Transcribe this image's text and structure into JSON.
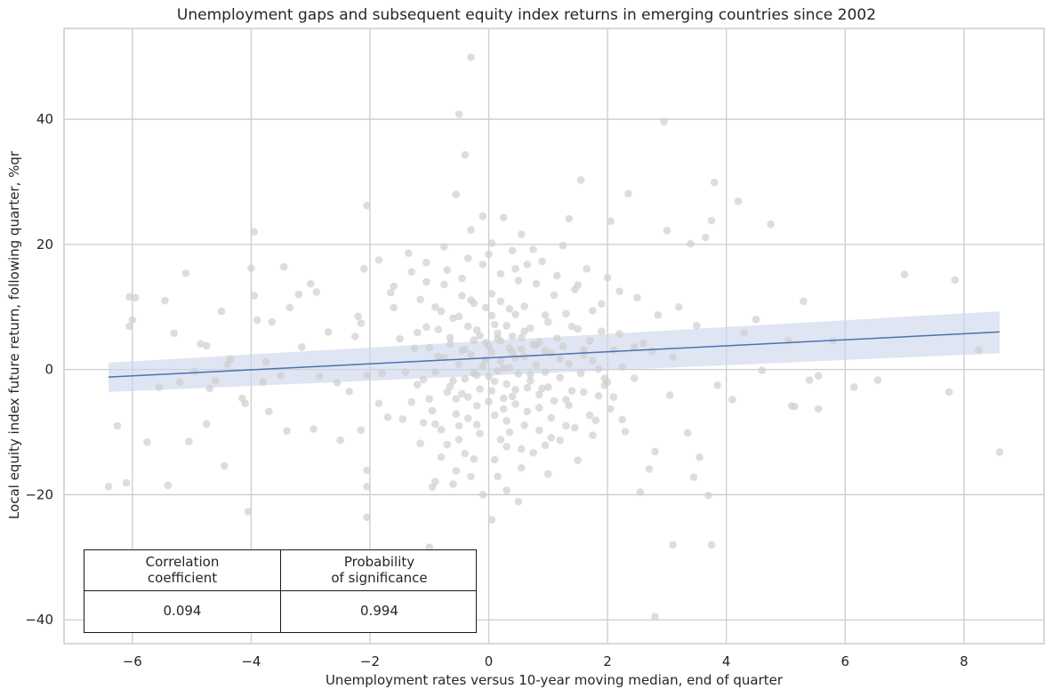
{
  "chart_data": {
    "type": "scatter",
    "title": "Unemployment gaps and subsequent equity index returns in emerging countries since 2002",
    "xlabel": "Unemployment rates versus 10-year moving median, end of quarter",
    "ylabel": "Local equity index future return, following quarter, %qr",
    "xlim": [
      -7.15,
      9.35
    ],
    "ylim": [
      -43.8,
      54.5
    ],
    "xticks": [
      -6,
      -4,
      -2,
      0,
      2,
      4,
      6,
      8
    ],
    "yticks": [
      -40,
      -20,
      0,
      20,
      40
    ],
    "xtick_labels": [
      "−6",
      "−4",
      "−2",
      "0",
      "2",
      "4",
      "6",
      "8"
    ],
    "ytick_labels": [
      "−40",
      "−20",
      "0",
      "20",
      "40"
    ],
    "grid": true,
    "colors": {
      "points": "#cfcfcf",
      "line": "#4c72b0",
      "band": "#c9d4ea",
      "grid": "#cccccc"
    },
    "regression": {
      "x": [
        -6.4,
        8.6
      ],
      "y": [
        -1.2,
        6.0
      ],
      "ci_lower": [
        -3.6,
        2.6
      ],
      "ci_upper": [
        1.1,
        9.3
      ]
    },
    "points": [
      [
        -6.4,
        -18.7
      ],
      [
        -6.25,
        -9.0
      ],
      [
        -6.1,
        -18.1
      ],
      [
        -6.05,
        11.6
      ],
      [
        -6.0,
        7.9
      ],
      [
        -5.95,
        11.5
      ],
      [
        -6.05,
        6.9
      ],
      [
        -5.75,
        -11.6
      ],
      [
        -5.45,
        11.0
      ],
      [
        -5.4,
        -18.5
      ],
      [
        -5.55,
        -2.8
      ],
      [
        -5.3,
        5.8
      ],
      [
        -5.2,
        -2.0
      ],
      [
        -5.1,
        15.4
      ],
      [
        -5.05,
        -11.5
      ],
      [
        -4.95,
        -0.3
      ],
      [
        -4.85,
        4.1
      ],
      [
        -4.75,
        -8.7
      ],
      [
        -4.75,
        3.8
      ],
      [
        -4.7,
        -3.0
      ],
      [
        -4.6,
        -1.8
      ],
      [
        -4.5,
        9.3
      ],
      [
        -4.45,
        -15.4
      ],
      [
        -4.4,
        0.8
      ],
      [
        -4.35,
        1.7
      ],
      [
        -4.15,
        -4.6
      ],
      [
        -4.1,
        -5.4
      ],
      [
        -4.05,
        -22.7
      ],
      [
        -4.0,
        16.2
      ],
      [
        -3.95,
        22.0
      ],
      [
        -3.95,
        11.8
      ],
      [
        -3.9,
        7.9
      ],
      [
        -3.8,
        -2.0
      ],
      [
        -3.75,
        1.2
      ],
      [
        -3.7,
        -6.7
      ],
      [
        -3.65,
        7.6
      ],
      [
        -3.5,
        -1.0
      ],
      [
        -3.45,
        16.4
      ],
      [
        -3.4,
        -9.8
      ],
      [
        -3.35,
        9.9
      ],
      [
        -3.2,
        12.0
      ],
      [
        -3.15,
        3.6
      ],
      [
        -3.0,
        13.7
      ],
      [
        -2.95,
        -9.5
      ],
      [
        -2.9,
        12.4
      ],
      [
        -2.85,
        -1.1
      ],
      [
        -2.7,
        6.0
      ],
      [
        -2.55,
        -2.1
      ],
      [
        -2.5,
        -11.3
      ],
      [
        -2.35,
        -3.5
      ],
      [
        -2.25,
        5.3
      ],
      [
        -2.2,
        8.5
      ],
      [
        -2.15,
        7.4
      ],
      [
        -2.15,
        -9.7
      ],
      [
        -2.05,
        -23.6
      ],
      [
        -2.05,
        -18.7
      ],
      [
        -2.05,
        -16.1
      ],
      [
        -2.05,
        26.2
      ],
      [
        -2.1,
        16.1
      ],
      [
        -2.05,
        -0.9
      ],
      [
        -1.85,
        17.5
      ],
      [
        -1.85,
        -5.4
      ],
      [
        -1.8,
        -0.6
      ],
      [
        -1.7,
        -7.6
      ],
      [
        -1.65,
        12.3
      ],
      [
        -1.6,
        9.9
      ],
      [
        -1.5,
        4.9
      ],
      [
        -1.4,
        -0.4
      ],
      [
        -1.35,
        18.6
      ],
      [
        -1.25,
        3.4
      ],
      [
        -1.2,
        -2.4
      ],
      [
        -1.15,
        11.2
      ],
      [
        -1.1,
        -8.5
      ],
      [
        -1.05,
        6.8
      ],
      [
        -1.05,
        17.1
      ],
      [
        -1.0,
        -4.7
      ],
      [
        -0.95,
        -18.8
      ],
      [
        -0.9,
        -8.7
      ],
      [
        -0.85,
        2.1
      ],
      [
        -0.8,
        9.3
      ],
      [
        -0.75,
        19.6
      ],
      [
        -0.7,
        -12.0
      ],
      [
        -0.65,
        5.1
      ],
      [
        -0.6,
        -1.8
      ],
      [
        -0.55,
        -16.2
      ],
      [
        -0.5,
        8.5
      ],
      [
        -0.45,
        14.6
      ],
      [
        -0.45,
        -3.9
      ],
      [
        -0.4,
        3.2
      ],
      [
        -0.35,
        -7.8
      ],
      [
        -0.3,
        11.1
      ],
      [
        -0.25,
        -0.6
      ],
      [
        -0.25,
        -14.3
      ],
      [
        -0.2,
        6.3
      ],
      [
        -0.15,
        -10.2
      ],
      [
        -0.1,
        16.8
      ],
      [
        -0.05,
        1.6
      ],
      [
        0.0,
        -5.1
      ],
      [
        0.05,
        12.1
      ],
      [
        0.1,
        -1.9
      ],
      [
        0.1,
        7.2
      ],
      [
        0.15,
        -17.1
      ],
      [
        0.2,
        4.6
      ],
      [
        0.25,
        0.2
      ],
      [
        0.3,
        -8.2
      ],
      [
        0.35,
        9.7
      ],
      [
        0.4,
        2.8
      ],
      [
        0.45,
        -3.2
      ],
      [
        0.5,
        14.2
      ],
      [
        0.55,
        -12.7
      ],
      [
        0.6,
        6.1
      ],
      [
        0.7,
        -0.8
      ],
      [
        0.75,
        19.2
      ],
      [
        0.8,
        3.9
      ],
      [
        0.85,
        -6.1
      ],
      [
        0.95,
        8.7
      ],
      [
        1.0,
        -2.8
      ],
      [
        1.05,
        -10.9
      ],
      [
        1.1,
        11.9
      ],
      [
        1.2,
        1.7
      ],
      [
        1.3,
        -4.8
      ],
      [
        1.35,
        24.1
      ],
      [
        1.4,
        6.9
      ],
      [
        1.5,
        -14.5
      ],
      [
        1.55,
        30.3
      ],
      [
        1.6,
        3.1
      ],
      [
        1.7,
        -7.3
      ],
      [
        1.75,
        9.4
      ],
      [
        1.85,
        0.1
      ],
      [
        1.95,
        -2.5
      ],
      [
        2.05,
        23.7
      ],
      [
        2.05,
        -6.3
      ],
      [
        2.2,
        12.5
      ],
      [
        2.3,
        -9.9
      ],
      [
        2.35,
        28.1
      ],
      [
        2.45,
        -1.4
      ],
      [
        2.55,
        -19.6
      ],
      [
        2.6,
        4.2
      ],
      [
        2.7,
        -15.9
      ],
      [
        2.8,
        -39.5
      ],
      [
        2.8,
        -13.1
      ],
      [
        2.85,
        8.7
      ],
      [
        2.95,
        39.6
      ],
      [
        3.0,
        22.2
      ],
      [
        3.05,
        -4.1
      ],
      [
        3.1,
        -28.0
      ],
      [
        3.1,
        2.0
      ],
      [
        3.2,
        10.0
      ],
      [
        3.35,
        -10.1
      ],
      [
        3.4,
        20.1
      ],
      [
        3.45,
        -17.2
      ],
      [
        3.5,
        7.0
      ],
      [
        3.55,
        -14.0
      ],
      [
        3.65,
        21.1
      ],
      [
        3.7,
        -20.1
      ],
      [
        3.75,
        23.8
      ],
      [
        3.75,
        -28.0
      ],
      [
        3.8,
        29.9
      ],
      [
        3.85,
        -2.5
      ],
      [
        4.1,
        -4.8
      ],
      [
        4.2,
        26.9
      ],
      [
        4.3,
        5.9
      ],
      [
        4.5,
        8.0
      ],
      [
        4.6,
        -0.1
      ],
      [
        4.75,
        23.2
      ],
      [
        5.05,
        4.6
      ],
      [
        5.1,
        -5.8
      ],
      [
        5.15,
        -5.9
      ],
      [
        5.3,
        10.9
      ],
      [
        5.4,
        -1.7
      ],
      [
        5.55,
        -6.3
      ],
      [
        5.55,
        -1.0
      ],
      [
        5.8,
        4.6
      ],
      [
        6.15,
        -2.8
      ],
      [
        6.55,
        -1.7
      ],
      [
        7.0,
        15.2
      ],
      [
        7.75,
        -3.6
      ],
      [
        7.85,
        14.3
      ],
      [
        8.25,
        3.1
      ],
      [
        8.6,
        -13.2
      ],
      [
        -1.0,
        -28.4
      ],
      [
        -0.9,
        -17.9
      ],
      [
        -0.8,
        -14.0
      ],
      [
        -0.6,
        -18.3
      ],
      [
        -0.55,
        -4.7
      ],
      [
        -0.5,
        -9.0
      ],
      [
        -0.4,
        -13.4
      ],
      [
        -0.3,
        -17.1
      ],
      [
        -0.2,
        -5.8
      ],
      [
        -0.1,
        -20.0
      ],
      [
        0.05,
        -24.0
      ],
      [
        0.1,
        -14.4
      ],
      [
        0.2,
        -11.2
      ],
      [
        0.25,
        -6.3
      ],
      [
        0.3,
        -19.3
      ],
      [
        0.35,
        -10.0
      ],
      [
        0.4,
        -4.3
      ],
      [
        0.5,
        -21.1
      ],
      [
        0.55,
        -15.7
      ],
      [
        0.65,
        -6.7
      ],
      [
        0.75,
        -13.3
      ],
      [
        0.85,
        -9.7
      ],
      [
        0.9,
        -3.0
      ],
      [
        1.0,
        -16.7
      ],
      [
        1.05,
        -7.7
      ],
      [
        1.2,
        -11.3
      ],
      [
        1.35,
        -5.7
      ],
      [
        1.45,
        -9.3
      ],
      [
        1.6,
        -3.6
      ],
      [
        1.8,
        -8.1
      ],
      [
        1.95,
        -1.4
      ],
      [
        2.1,
        -4.4
      ],
      [
        -0.3,
        49.9
      ],
      [
        -0.5,
        40.8
      ],
      [
        -0.4,
        34.3
      ],
      [
        -0.55,
        28.0
      ],
      [
        -0.3,
        22.3
      ],
      [
        -0.1,
        24.5
      ],
      [
        0.05,
        20.2
      ],
      [
        0.25,
        24.3
      ],
      [
        0.4,
        19.0
      ],
      [
        0.55,
        21.6
      ],
      [
        0.65,
        16.8
      ],
      [
        0.9,
        17.3
      ],
      [
        1.25,
        19.8
      ],
      [
        1.45,
        12.8
      ],
      [
        1.65,
        16.1
      ],
      [
        1.9,
        10.5
      ],
      [
        -0.9,
        10.0
      ],
      [
        -0.75,
        13.6
      ],
      [
        -0.6,
        8.2
      ],
      [
        -0.45,
        11.8
      ],
      [
        -0.35,
        6.9
      ],
      [
        -0.25,
        10.6
      ],
      [
        -0.15,
        5.4
      ],
      [
        -0.05,
        9.9
      ],
      [
        0.0,
        3.7
      ],
      [
        0.05,
        8.6
      ],
      [
        0.15,
        5.8
      ],
      [
        0.2,
        10.9
      ],
      [
        0.3,
        7.0
      ],
      [
        0.4,
        5.3
      ],
      [
        0.45,
        8.8
      ],
      [
        0.55,
        3.3
      ],
      [
        0.6,
        10.1
      ],
      [
        0.7,
        6.6
      ],
      [
        0.85,
        4.4
      ],
      [
        1.0,
        7.6
      ],
      [
        1.15,
        5.0
      ],
      [
        1.3,
        8.9
      ],
      [
        1.5,
        6.5
      ],
      [
        1.7,
        4.6
      ],
      [
        1.9,
        6.1
      ],
      [
        2.2,
        5.7
      ],
      [
        2.45,
        3.6
      ],
      [
        2.75,
        2.9
      ],
      [
        -0.9,
        -0.4
      ],
      [
        -0.75,
        1.9
      ],
      [
        -0.65,
        -2.7
      ],
      [
        -0.5,
        0.8
      ],
      [
        -0.4,
        -1.5
      ],
      [
        -0.3,
        2.4
      ],
      [
        -0.2,
        -0.9
      ],
      [
        -0.1,
        0.6
      ],
      [
        0.0,
        -1.1
      ],
      [
        0.05,
        2.8
      ],
      [
        0.15,
        -0.2
      ],
      [
        0.2,
        1.3
      ],
      [
        0.3,
        -2.3
      ],
      [
        0.35,
        0.3
      ],
      [
        0.45,
        1.9
      ],
      [
        0.5,
        -0.7
      ],
      [
        0.6,
        2.1
      ],
      [
        0.7,
        -1.8
      ],
      [
        0.8,
        0.7
      ],
      [
        0.95,
        -0.4
      ],
      [
        1.05,
        2.6
      ],
      [
        1.2,
        -1.3
      ],
      [
        1.35,
        0.9
      ],
      [
        1.55,
        -0.6
      ],
      [
        1.75,
        1.4
      ],
      [
        2.0,
        -2.0
      ],
      [
        2.25,
        0.4
      ],
      [
        -1.3,
        -5.2
      ],
      [
        -1.2,
        5.9
      ],
      [
        -1.1,
        -1.6
      ],
      [
        -1.0,
        3.5
      ],
      [
        -0.95,
        -6.6
      ],
      [
        -0.85,
        6.4
      ],
      [
        -0.7,
        -3.6
      ],
      [
        -0.65,
        4.1
      ],
      [
        -0.55,
        -7.1
      ],
      [
        -0.45,
        3.0
      ],
      [
        -0.35,
        -4.4
      ],
      [
        -0.25,
        4.7
      ],
      [
        -0.15,
        -3.1
      ],
      [
        -0.05,
        4.3
      ],
      [
        0.05,
        -3.4
      ],
      [
        0.15,
        4.9
      ],
      [
        0.25,
        -4.6
      ],
      [
        0.35,
        3.4
      ],
      [
        0.45,
        -5.5
      ],
      [
        0.55,
        5.1
      ],
      [
        0.65,
        -2.9
      ],
      [
        0.75,
        4.0
      ],
      [
        0.85,
        -4.0
      ],
      [
        0.95,
        3.0
      ],
      [
        1.1,
        -5.0
      ],
      [
        1.25,
        3.7
      ],
      [
        1.4,
        -3.4
      ],
      [
        1.6,
        2.3
      ],
      [
        1.85,
        -4.2
      ],
      [
        2.1,
        3.1
      ],
      [
        -1.6,
        13.3
      ],
      [
        -1.45,
        -7.9
      ],
      [
        -1.3,
        15.6
      ],
      [
        -1.15,
        -11.8
      ],
      [
        -1.05,
        14.0
      ],
      [
        -0.8,
        -9.6
      ],
      [
        -0.7,
        15.9
      ],
      [
        -0.5,
        -11.2
      ],
      [
        -0.35,
        17.8
      ],
      [
        -0.2,
        -8.8
      ],
      [
        0.0,
        18.4
      ],
      [
        0.1,
        -7.3
      ],
      [
        0.2,
        15.3
      ],
      [
        0.3,
        -12.3
      ],
      [
        0.45,
        16.1
      ],
      [
        0.6,
        -8.9
      ],
      [
        0.8,
        13.7
      ],
      [
        0.95,
        -12.1
      ],
      [
        1.15,
        15.0
      ],
      [
        1.3,
        -9.0
      ],
      [
        1.5,
        13.5
      ],
      [
        1.75,
        -10.5
      ],
      [
        2.0,
        14.7
      ],
      [
        2.25,
        -8.0
      ],
      [
        2.5,
        11.5
      ]
    ],
    "stats_table": {
      "headers": [
        "Correlation\ncoefficient",
        "Probability\nof significance"
      ],
      "values": [
        "0.094",
        "0.994"
      ]
    }
  }
}
